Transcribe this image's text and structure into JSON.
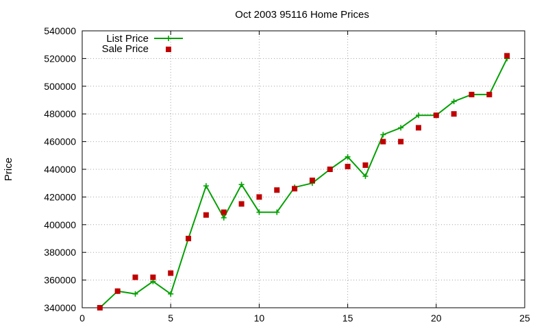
{
  "chart_data": {
    "type": "line",
    "title": "Oct 2003 95116 Home Prices",
    "xlabel": "",
    "ylabel": "Price",
    "xlim": [
      0,
      25
    ],
    "ylim": [
      340000,
      540000
    ],
    "xticks": [
      0,
      5,
      10,
      15,
      20,
      25
    ],
    "yticks": [
      340000,
      360000,
      380000,
      400000,
      420000,
      440000,
      460000,
      480000,
      500000,
      520000,
      540000
    ],
    "grid": true,
    "legend_position": "top-left",
    "series": [
      {
        "name": "List Price",
        "style": "line+crosses",
        "color": "#00a000",
        "x": [
          1,
          2,
          3,
          4,
          5,
          6,
          7,
          8,
          9,
          10,
          11,
          12,
          13,
          14,
          15,
          16,
          17,
          18,
          19,
          20,
          21,
          22,
          23,
          24
        ],
        "y": [
          340000,
          352000,
          350000,
          359000,
          350000,
          390000,
          428000,
          405000,
          429000,
          409000,
          409000,
          427000,
          430000,
          440000,
          449000,
          435000,
          465000,
          470000,
          479000,
          479000,
          489000,
          494000,
          494000,
          520000
        ]
      },
      {
        "name": "Sale Price",
        "style": "squares",
        "color": "#c00000",
        "x": [
          1,
          2,
          3,
          4,
          5,
          6,
          7,
          8,
          9,
          10,
          11,
          12,
          13,
          14,
          15,
          16,
          17,
          18,
          19,
          20,
          21,
          22,
          23,
          24
        ],
        "y": [
          340000,
          352000,
          362000,
          362000,
          365000,
          390000,
          407000,
          409000,
          415000,
          420000,
          425000,
          426000,
          432000,
          440000,
          442000,
          443000,
          460000,
          460000,
          470000,
          479000,
          480000,
          494000,
          494000,
          522000
        ]
      }
    ]
  }
}
